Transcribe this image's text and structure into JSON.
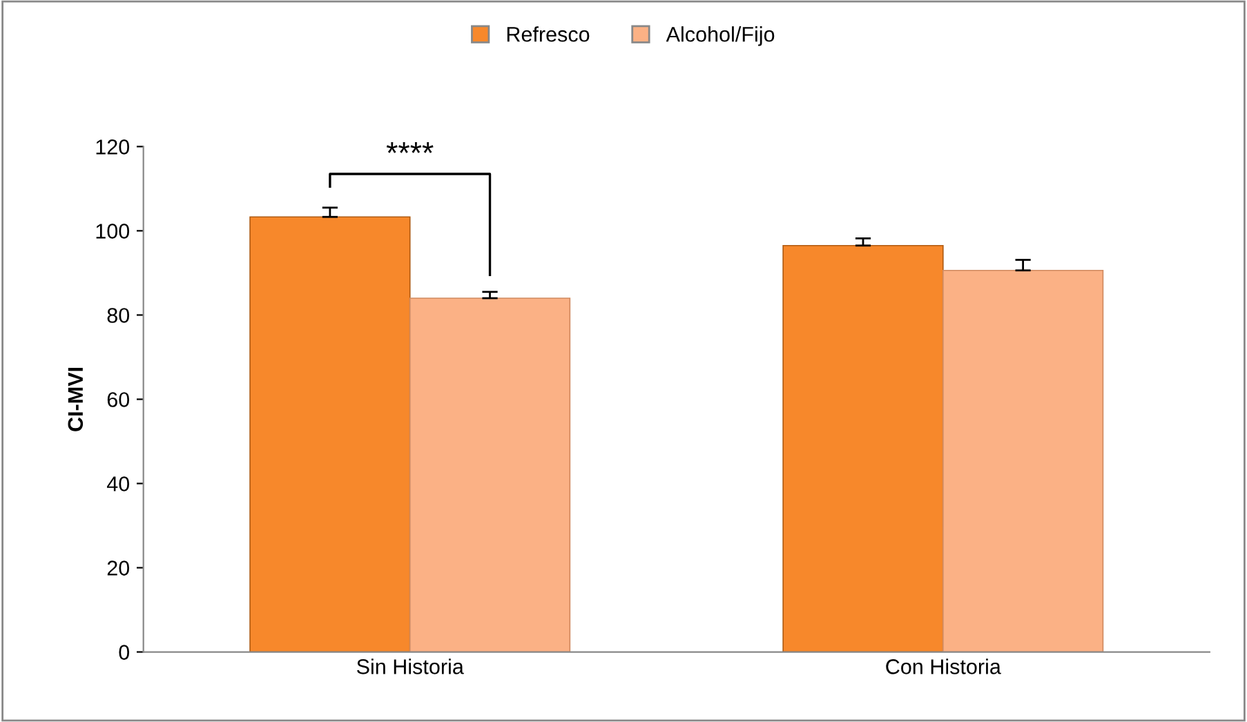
{
  "chart_data": {
    "type": "bar",
    "ylabel": "CI-MVI",
    "categories": [
      "Sin Historia",
      "Con Historia"
    ],
    "series": [
      {
        "name": "Refresco",
        "color": "#f7882b",
        "values": [
          103.3,
          96.5
        ],
        "errors": [
          [
            103.3,
            105.5
          ],
          [
            96.5,
            98.2
          ]
        ]
      },
      {
        "name": "Alcohol/Fijo",
        "color": "#fbb185",
        "values": [
          84,
          90.6
        ],
        "errors": [
          [
            84,
            85.5
          ],
          [
            90.6,
            93.1
          ]
        ]
      }
    ],
    "ylim": [
      0,
      120
    ],
    "yticks": [
      0,
      20,
      40,
      60,
      80,
      100,
      120
    ],
    "grid": false,
    "legend": "top",
    "annotations": [
      "****"
    ]
  }
}
